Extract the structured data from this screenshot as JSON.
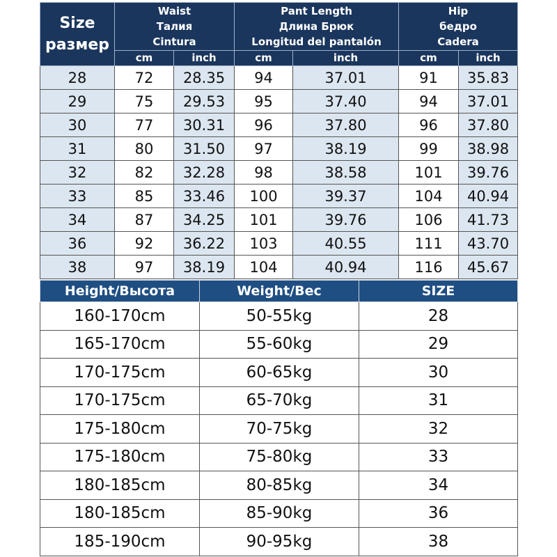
{
  "measure_table": {
    "size_header": [
      "Size",
      "размер"
    ],
    "groups": [
      {
        "lines": [
          "Waist",
          "Талия",
          "Cintura"
        ]
      },
      {
        "lines": [
          "Pant Length",
          "Длина Брюк",
          "Longitud del pantalón"
        ]
      },
      {
        "lines": [
          "Hip",
          "бедро",
          "Cadera"
        ]
      }
    ],
    "units": [
      "cm",
      "inch",
      "cm",
      "inch",
      "cm",
      "inch"
    ],
    "rows": [
      [
        "28",
        "72",
        "28.35",
        "94",
        "37.01",
        "91",
        "35.83"
      ],
      [
        "29",
        "75",
        "29.53",
        "95",
        "37.40",
        "94",
        "37.01"
      ],
      [
        "30",
        "77",
        "30.31",
        "96",
        "37.80",
        "96",
        "37.80"
      ],
      [
        "31",
        "80",
        "31.50",
        "97",
        "38.19",
        "99",
        "38.98"
      ],
      [
        "32",
        "82",
        "32.28",
        "98",
        "38.58",
        "101",
        "39.76"
      ],
      [
        "33",
        "85",
        "33.46",
        "100",
        "39.37",
        "104",
        "40.94"
      ],
      [
        "34",
        "87",
        "34.25",
        "101",
        "39.76",
        "106",
        "41.73"
      ],
      [
        "36",
        "92",
        "36.22",
        "103",
        "40.55",
        "111",
        "43.70"
      ],
      [
        "38",
        "97",
        "38.19",
        "104",
        "40.94",
        "116",
        "45.67"
      ]
    ]
  },
  "fit_table": {
    "headers": [
      "Height/Высота",
      "Weight/Вес",
      "SIZE"
    ],
    "rows": [
      [
        "160-170cm",
        "50-55kg",
        "28"
      ],
      [
        "165-170cm",
        "55-60kg",
        "29"
      ],
      [
        "170-175cm",
        "60-65kg",
        "30"
      ],
      [
        "170-175cm",
        "65-70kg",
        "31"
      ],
      [
        "175-180cm",
        "70-75kg",
        "32"
      ],
      [
        "175-180cm",
        "75-80kg",
        "33"
      ],
      [
        "180-185cm",
        "80-85kg",
        "34"
      ],
      [
        "180-185cm",
        "85-90kg",
        "36"
      ],
      [
        "185-190cm",
        "90-95kg",
        "38"
      ]
    ]
  },
  "colors": {
    "header_navy": "#1b365d",
    "header_blue": "#1f4e82",
    "shade_cell": "#dce6f0"
  }
}
